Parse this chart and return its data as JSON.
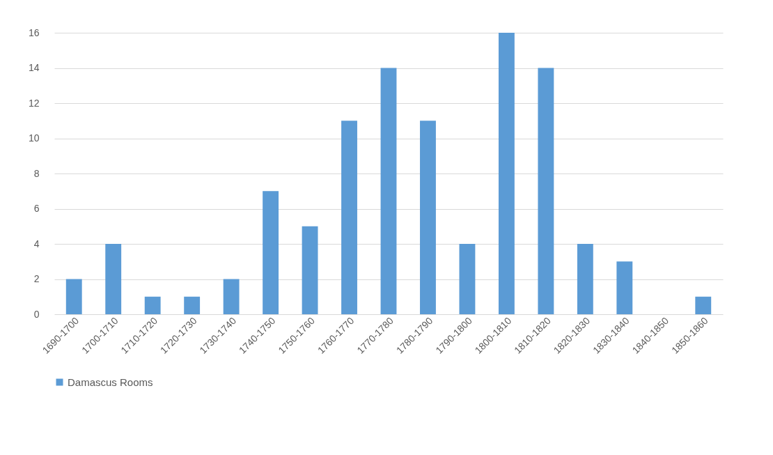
{
  "chart_data": {
    "type": "bar",
    "categories": [
      "1690-1700",
      "1700-1710",
      "1710-1720",
      "1720-1730",
      "1730-1740",
      "1740-1750",
      "1750-1760",
      "1760-1770",
      "1770-1780",
      "1780-1790",
      "1790-1800",
      "1800-1810",
      "1810-1820",
      "1820-1830",
      "1830-1840",
      "1840-1850",
      "1850-1860"
    ],
    "series": [
      {
        "name": "Damascus Rooms",
        "color": "#5b9bd5",
        "values": [
          2,
          4,
          1,
          1,
          2,
          7,
          5,
          11,
          14,
          11,
          4,
          16,
          14,
          4,
          3,
          0,
          1
        ]
      }
    ],
    "ylim": [
      0,
      16
    ],
    "yticks": [
      0,
      2,
      4,
      6,
      8,
      10,
      12,
      14,
      16
    ],
    "grid": "y",
    "legend": "bottom"
  }
}
